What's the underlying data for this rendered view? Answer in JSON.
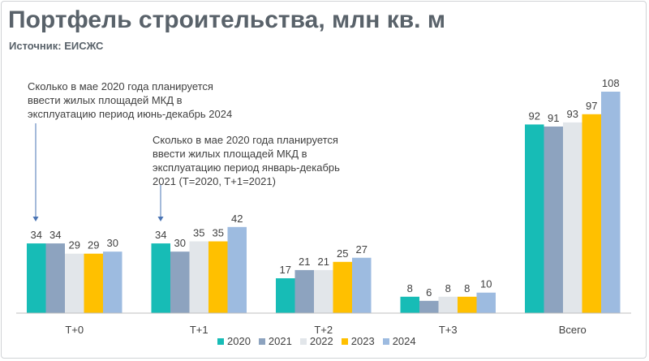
{
  "title": "Портфель строительства, млн кв. м",
  "source": "Источник: ЕИСЖС",
  "annotations": [
    "Сколько в мае 2020 года планируется\nввести жилых площадей МКД в\nэксплуатацию период июнь-декабрь 2024",
    "Сколько в мае 2020 года планируется\nввести жилых площадей МКД в\nэксплуатацию период январь-декабрь\n2021 (T=2020, T+1=2021)"
  ],
  "chart_data": {
    "type": "bar",
    "title": "Портфель строительства, млн кв. м",
    "categories": [
      "T+0",
      "T+1",
      "T+2",
      "T+3",
      "Всего"
    ],
    "series": [
      {
        "name": "2020",
        "color": "#17bcb6",
        "values": [
          34,
          34,
          17,
          8,
          92
        ]
      },
      {
        "name": "2021",
        "color": "#8da3bf",
        "values": [
          34,
          30,
          21,
          6,
          91
        ]
      },
      {
        "name": "2022",
        "color": "#e2e6ea",
        "values": [
          29,
          35,
          21,
          8,
          93
        ]
      },
      {
        "name": "2023",
        "color": "#ffc000",
        "values": [
          29,
          35,
          25,
          8,
          97
        ]
      },
      {
        "name": "2024",
        "color": "#9dbbe0",
        "values": [
          30,
          42,
          27,
          10,
          108
        ]
      }
    ],
    "ylim": [
      0,
      108
    ],
    "grid": false,
    "legend": "bottom-center",
    "xlabel": "",
    "ylabel": ""
  }
}
